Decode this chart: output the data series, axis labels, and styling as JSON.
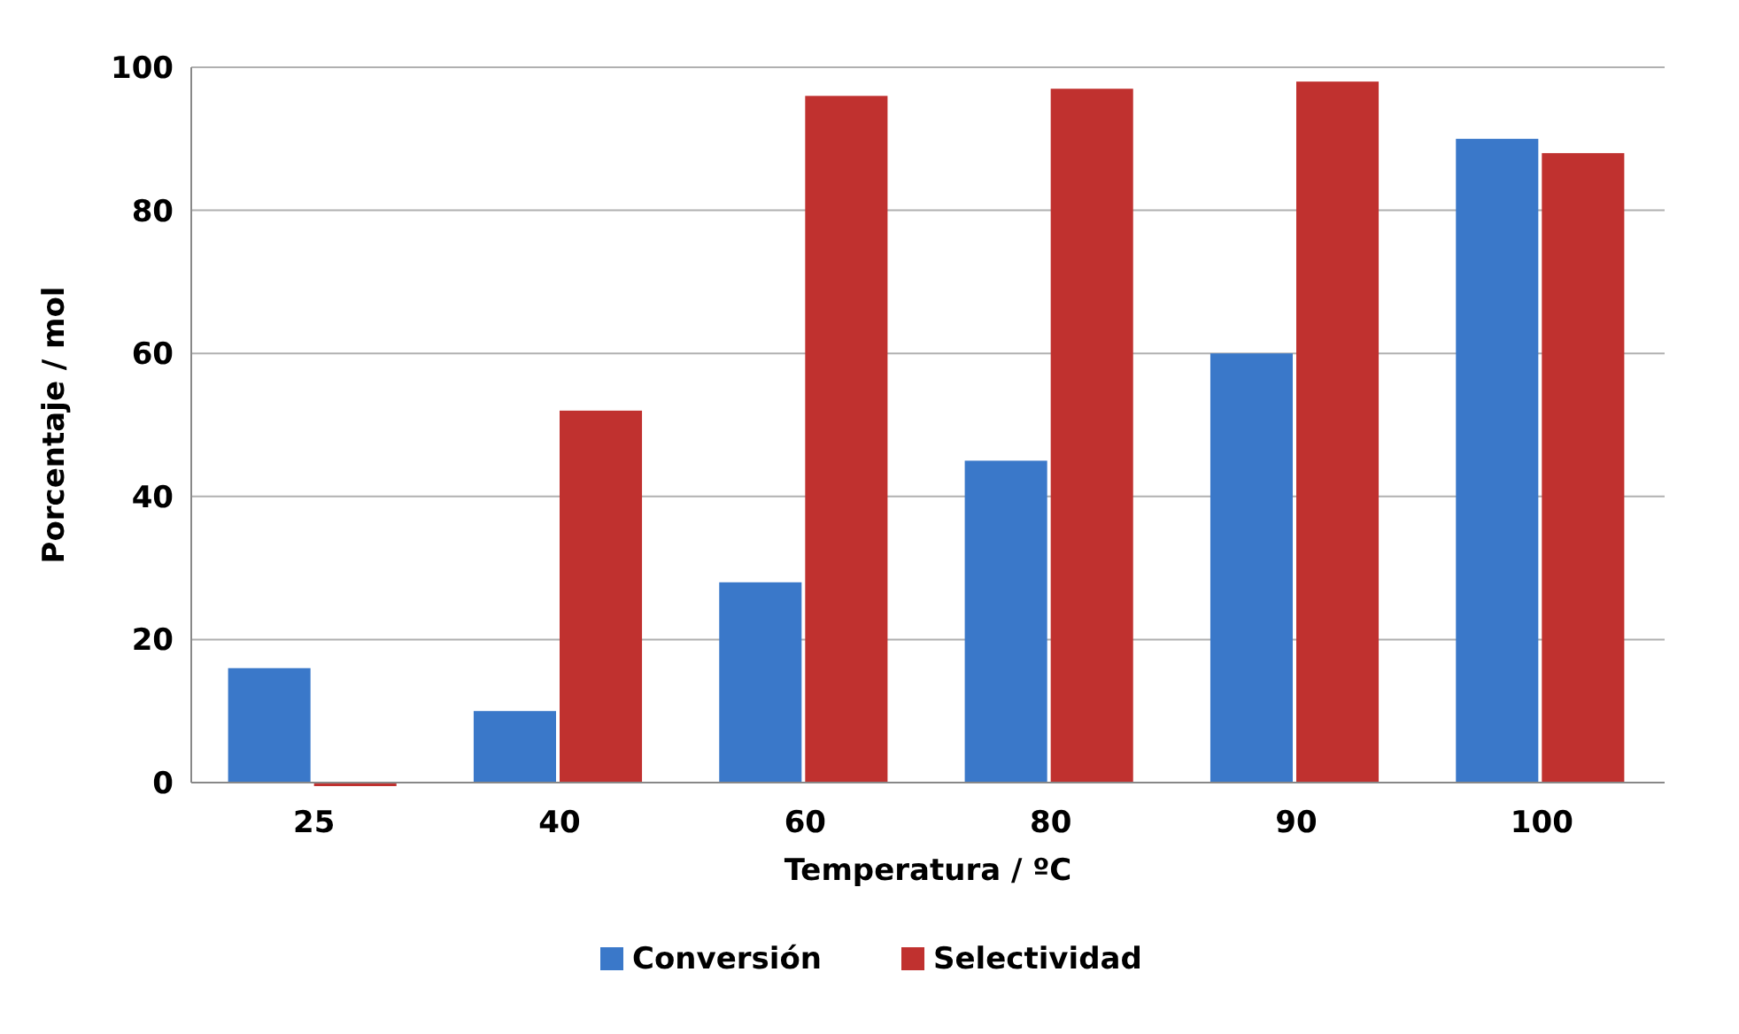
{
  "chart_data": {
    "type": "bar",
    "xlabel": "Temperatura / ºC",
    "ylabel": "Porcentaje / mol",
    "categories": [
      "25",
      "40",
      "60",
      "80",
      "90",
      "100"
    ],
    "series": [
      {
        "name": "Conversión",
        "color": "#3a78c9",
        "values": [
          16,
          10,
          28,
          45,
          60,
          90
        ]
      },
      {
        "name": "Selectividad",
        "color": "#c0312f",
        "values": [
          0,
          52,
          96,
          97,
          98,
          88
        ]
      }
    ],
    "ylim": [
      0,
      100
    ],
    "yticks": [
      0,
      20,
      40,
      60,
      80,
      100
    ],
    "grid": "y",
    "legend": "bottom"
  }
}
